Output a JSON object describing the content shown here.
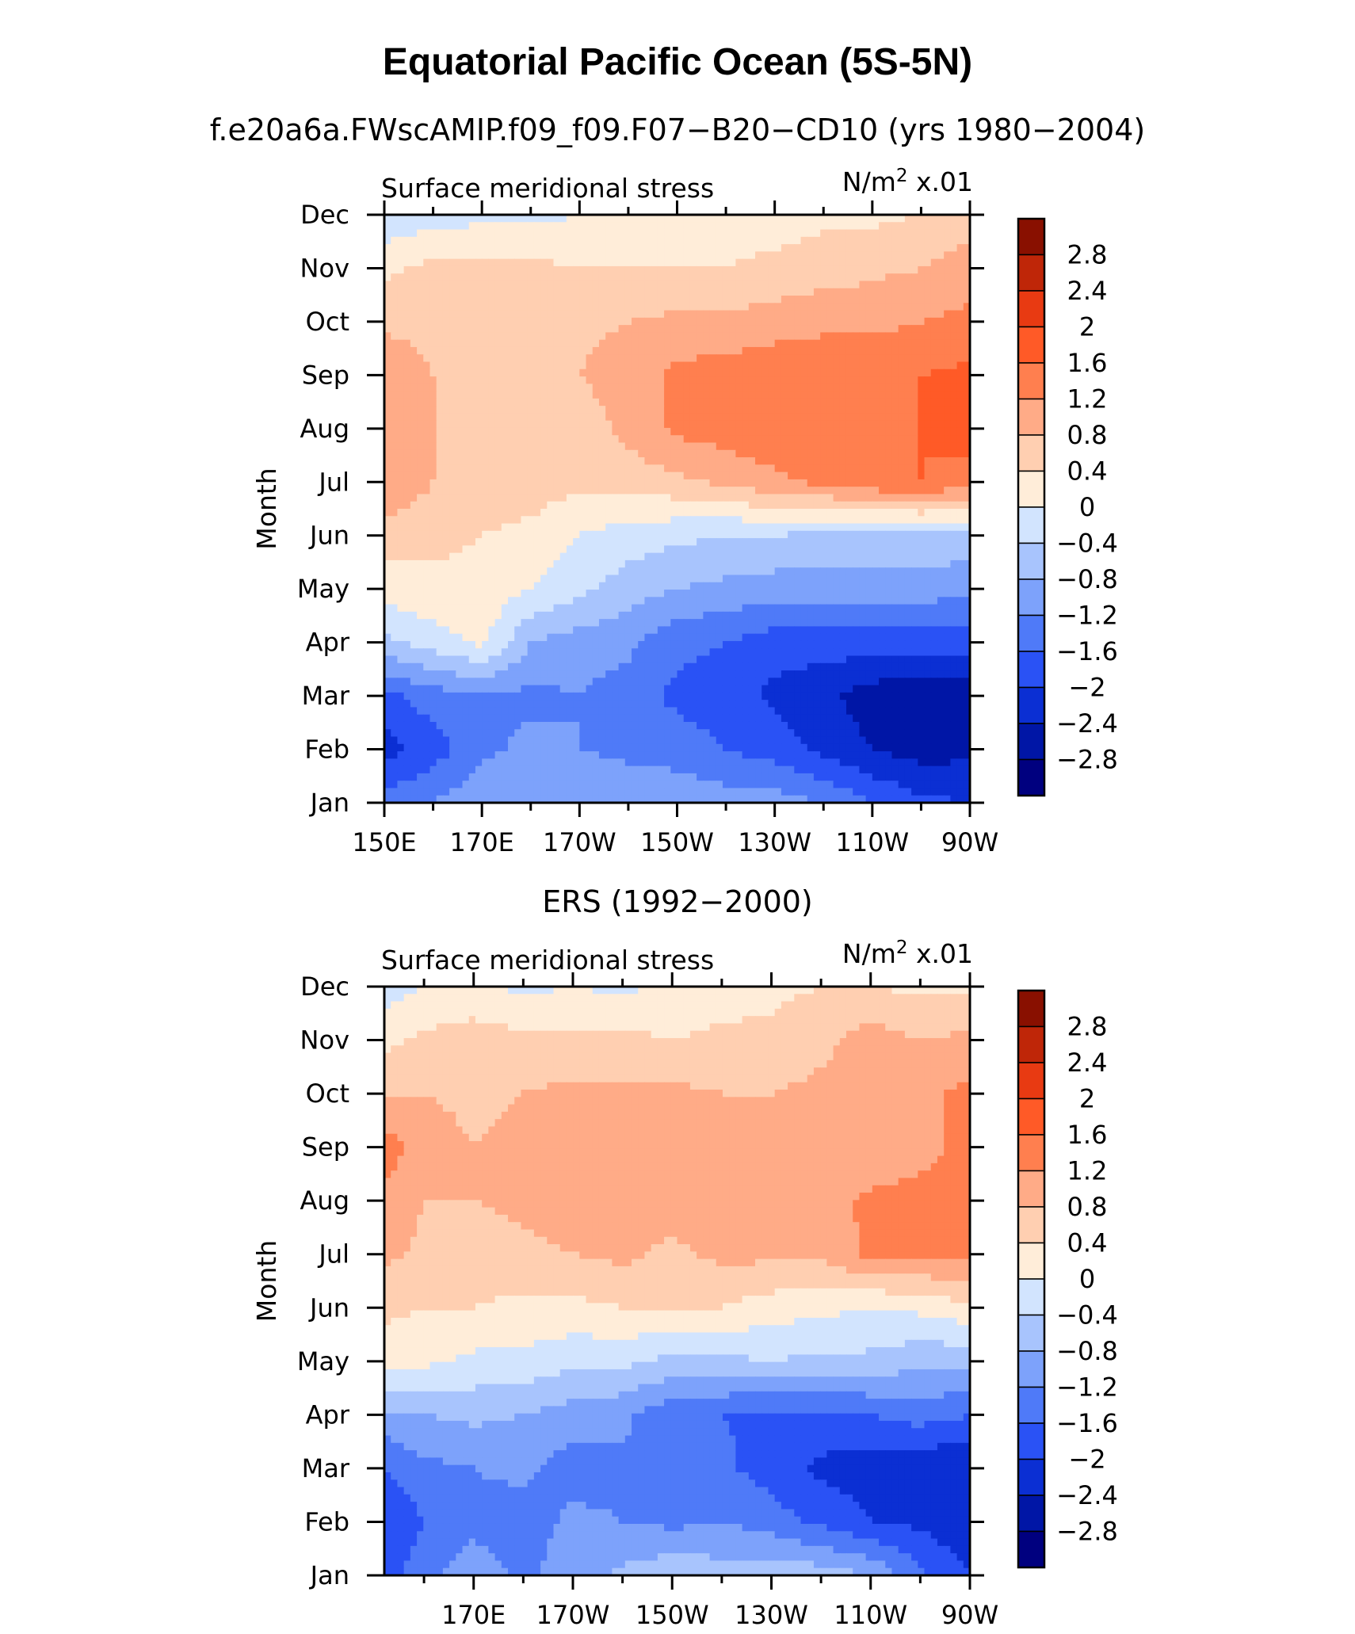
{
  "figure": {
    "title": "Equatorial Pacific Ocean (5S-5N)",
    "model_subtitle": "f.e20a6a.FWscAMIP.f09_f09.F07−B20−CD10 (yrs 1980−2004)",
    "obs_subtitle": "ERS (1992−2000)"
  },
  "colors": [
    "#00007f",
    "#0016a6",
    "#0b2fd3",
    "#2a52f5",
    "#4f7af8",
    "#7da2fb",
    "#a8c4fd",
    "#d2e4fe",
    "#ffedd9",
    "#ffcfb1",
    "#ffab87",
    "#ff7f4f",
    "#ff5a27",
    "#e83a12",
    "#bf2608",
    "#891000"
  ],
  "chart_data": [
    {
      "type": "contour",
      "name": "model",
      "left_label": "Surface meridional stress",
      "right_label_base": "N/m",
      "right_label_exp": "2",
      "right_label_scale": " x.01",
      "ylabel": "Month",
      "months": [
        "Jan",
        "Feb",
        "Mar",
        "Apr",
        "May",
        "Jun",
        "Jul",
        "Aug",
        "Sep",
        "Oct",
        "Nov",
        "Dec"
      ],
      "x_tick_labels": [
        "150E",
        "170E",
        "170W",
        "150W",
        "130W",
        "110W",
        "90W"
      ],
      "x_tick_lon": [
        150,
        170,
        190,
        210,
        230,
        250,
        270
      ],
      "xlim": [
        150,
        270
      ],
      "levels": [
        -2.8,
        -2.4,
        -2,
        -1.6,
        -1.2,
        -0.8,
        -0.4,
        0,
        0.4,
        0.8,
        1.2,
        1.6,
        2,
        2.4,
        2.8
      ],
      "colorbar_labels": [
        "2.8",
        "2.4",
        "2",
        "1.6",
        "1.2",
        "0.8",
        "0.4",
        "0",
        "−0.4",
        "−0.8",
        "−1.2",
        "−1.6",
        "−2",
        "−2.4",
        "−2.8"
      ],
      "lon": [
        150,
        160,
        170,
        180,
        190,
        200,
        210,
        220,
        230,
        240,
        250,
        260,
        270
      ],
      "values": [
        [
          -1.4,
          -1.2,
          -0.9,
          -0.8,
          -0.9,
          -0.9,
          -0.9,
          -1.0,
          -1.0,
          -1.2,
          -1.6,
          -1.9,
          -2.0
        ],
        [
          -2.2,
          -1.8,
          -1.3,
          -1.1,
          -1.2,
          -1.3,
          -1.4,
          -1.6,
          -1.8,
          -2.1,
          -2.4,
          -2.6,
          -2.5
        ],
        [
          -1.7,
          -1.4,
          -1.2,
          -1.3,
          -1.2,
          -1.4,
          -1.7,
          -1.8,
          -2.1,
          -2.3,
          -2.6,
          -2.8,
          -2.8
        ],
        [
          -0.5,
          -0.2,
          0.1,
          -0.8,
          -1.0,
          -1.1,
          -1.5,
          -1.6,
          -1.8,
          -1.8,
          -1.8,
          -1.8,
          -1.8
        ],
        [
          0.2,
          0.3,
          0.3,
          0.0,
          -0.3,
          -0.6,
          -0.8,
          -0.9,
          -1.0,
          -1.0,
          -1.0,
          -1.0,
          -1.1
        ],
        [
          0.6,
          0.5,
          0.4,
          0.3,
          0.0,
          -0.2,
          -0.3,
          -0.4,
          -0.4,
          -0.5,
          -0.5,
          -0.5,
          -0.5
        ],
        [
          1.2,
          0.8,
          0.6,
          0.6,
          0.5,
          0.6,
          0.7,
          0.9,
          1.1,
          1.3,
          1.5,
          1.6,
          1.4
        ],
        [
          1.2,
          0.8,
          0.6,
          0.6,
          0.6,
          0.9,
          1.3,
          1.4,
          1.5,
          1.6,
          1.6,
          1.6,
          1.8
        ],
        [
          1.1,
          0.8,
          0.7,
          0.7,
          0.8,
          1.0,
          1.3,
          1.4,
          1.5,
          1.5,
          1.5,
          1.6,
          1.7
        ],
        [
          0.7,
          0.7,
          0.6,
          0.6,
          0.7,
          0.8,
          0.9,
          0.9,
          1.0,
          1.1,
          1.1,
          1.2,
          1.3
        ],
        [
          0.3,
          0.5,
          0.5,
          0.5,
          0.4,
          0.4,
          0.4,
          0.4,
          0.5,
          0.6,
          0.7,
          0.8,
          1.0
        ],
        [
          -0.3,
          -0.2,
          -0.1,
          -0.1,
          0.0,
          0.0,
          0.1,
          0.2,
          0.2,
          0.3,
          0.3,
          0.4,
          0.6
        ]
      ]
    },
    {
      "type": "contour",
      "name": "observations",
      "left_label": "Surface meridional stress",
      "right_label_base": "N/m",
      "right_label_exp": "2",
      "right_label_scale": " x.01",
      "ylabel": "Month",
      "months": [
        "Jan",
        "Feb",
        "Mar",
        "Apr",
        "May",
        "Jun",
        "Jul",
        "Aug",
        "Sep",
        "Oct",
        "Nov",
        "Dec"
      ],
      "x_tick_labels": [
        "170E",
        "170W",
        "150W",
        "130W",
        "110W",
        "90W"
      ],
      "x_tick_lon": [
        170,
        190,
        210,
        230,
        250,
        270
      ],
      "xlim": [
        152,
        270
      ],
      "levels": [
        -2.8,
        -2.4,
        -2,
        -1.6,
        -1.2,
        -0.8,
        -0.4,
        0,
        0.4,
        0.8,
        1.2,
        1.6,
        2,
        2.4,
        2.8
      ],
      "colorbar_labels": [
        "2.8",
        "2.4",
        "2",
        "1.6",
        "1.2",
        "0.8",
        "0.4",
        "0",
        "−0.4",
        "−0.8",
        "−1.2",
        "−1.6",
        "−2",
        "−2.4",
        "−2.8"
      ],
      "lon": [
        152,
        160,
        170,
        180,
        190,
        200,
        210,
        220,
        230,
        240,
        250,
        260,
        270
      ],
      "values": [
        [
          -1.8,
          -1.3,
          -1.0,
          -1.3,
          -1.0,
          -0.7,
          -0.5,
          -0.6,
          -0.5,
          -0.6,
          -0.8,
          -1.5,
          -2.0
        ],
        [
          -2.0,
          -1.6,
          -1.3,
          -1.4,
          -1.1,
          -1.2,
          -1.3,
          -1.2,
          -1.4,
          -1.7,
          -2.0,
          -2.1,
          -2.3
        ],
        [
          -1.6,
          -1.3,
          -1.2,
          -1.1,
          -1.4,
          -1.3,
          -1.4,
          -1.5,
          -1.8,
          -2.1,
          -2.2,
          -2.4,
          -2.3
        ],
        [
          -0.9,
          -0.8,
          -0.7,
          -0.8,
          -1.0,
          -1.1,
          -1.5,
          -1.6,
          -1.7,
          -1.7,
          -1.6,
          -1.4,
          -1.6
        ],
        [
          0.2,
          0.1,
          -0.1,
          -0.1,
          -0.3,
          -0.3,
          -0.5,
          -0.5,
          -0.4,
          -0.5,
          -0.5,
          -0.7,
          -0.7
        ],
        [
          0.5,
          0.4,
          0.4,
          0.3,
          0.3,
          0.4,
          0.4,
          0.4,
          0.2,
          0.1,
          0.0,
          0.1,
          0.3
        ],
        [
          0.9,
          0.7,
          0.6,
          0.7,
          0.8,
          0.9,
          0.7,
          0.9,
          0.9,
          0.9,
          1.3,
          1.3,
          1.3
        ],
        [
          1.1,
          0.8,
          0.8,
          0.9,
          1.0,
          1.0,
          1.0,
          1.1,
          1.1,
          1.0,
          1.3,
          1.4,
          1.4
        ],
        [
          1.4,
          1.0,
          0.8,
          0.9,
          1.0,
          1.1,
          1.0,
          1.0,
          0.9,
          0.9,
          0.8,
          1.0,
          1.4
        ],
        [
          0.8,
          0.8,
          0.7,
          0.8,
          0.9,
          0.9,
          0.9,
          0.8,
          0.8,
          0.9,
          0.8,
          1.1,
          1.3
        ],
        [
          0.3,
          0.5,
          0.6,
          0.5,
          0.5,
          0.5,
          0.4,
          0.5,
          0.5,
          0.7,
          1.0,
          0.8,
          0.9
        ],
        [
          -0.2,
          0.0,
          0.1,
          -0.1,
          0.0,
          -0.1,
          0.1,
          0.2,
          0.3,
          0.4,
          0.4,
          0.3,
          0.3
        ]
      ]
    }
  ]
}
